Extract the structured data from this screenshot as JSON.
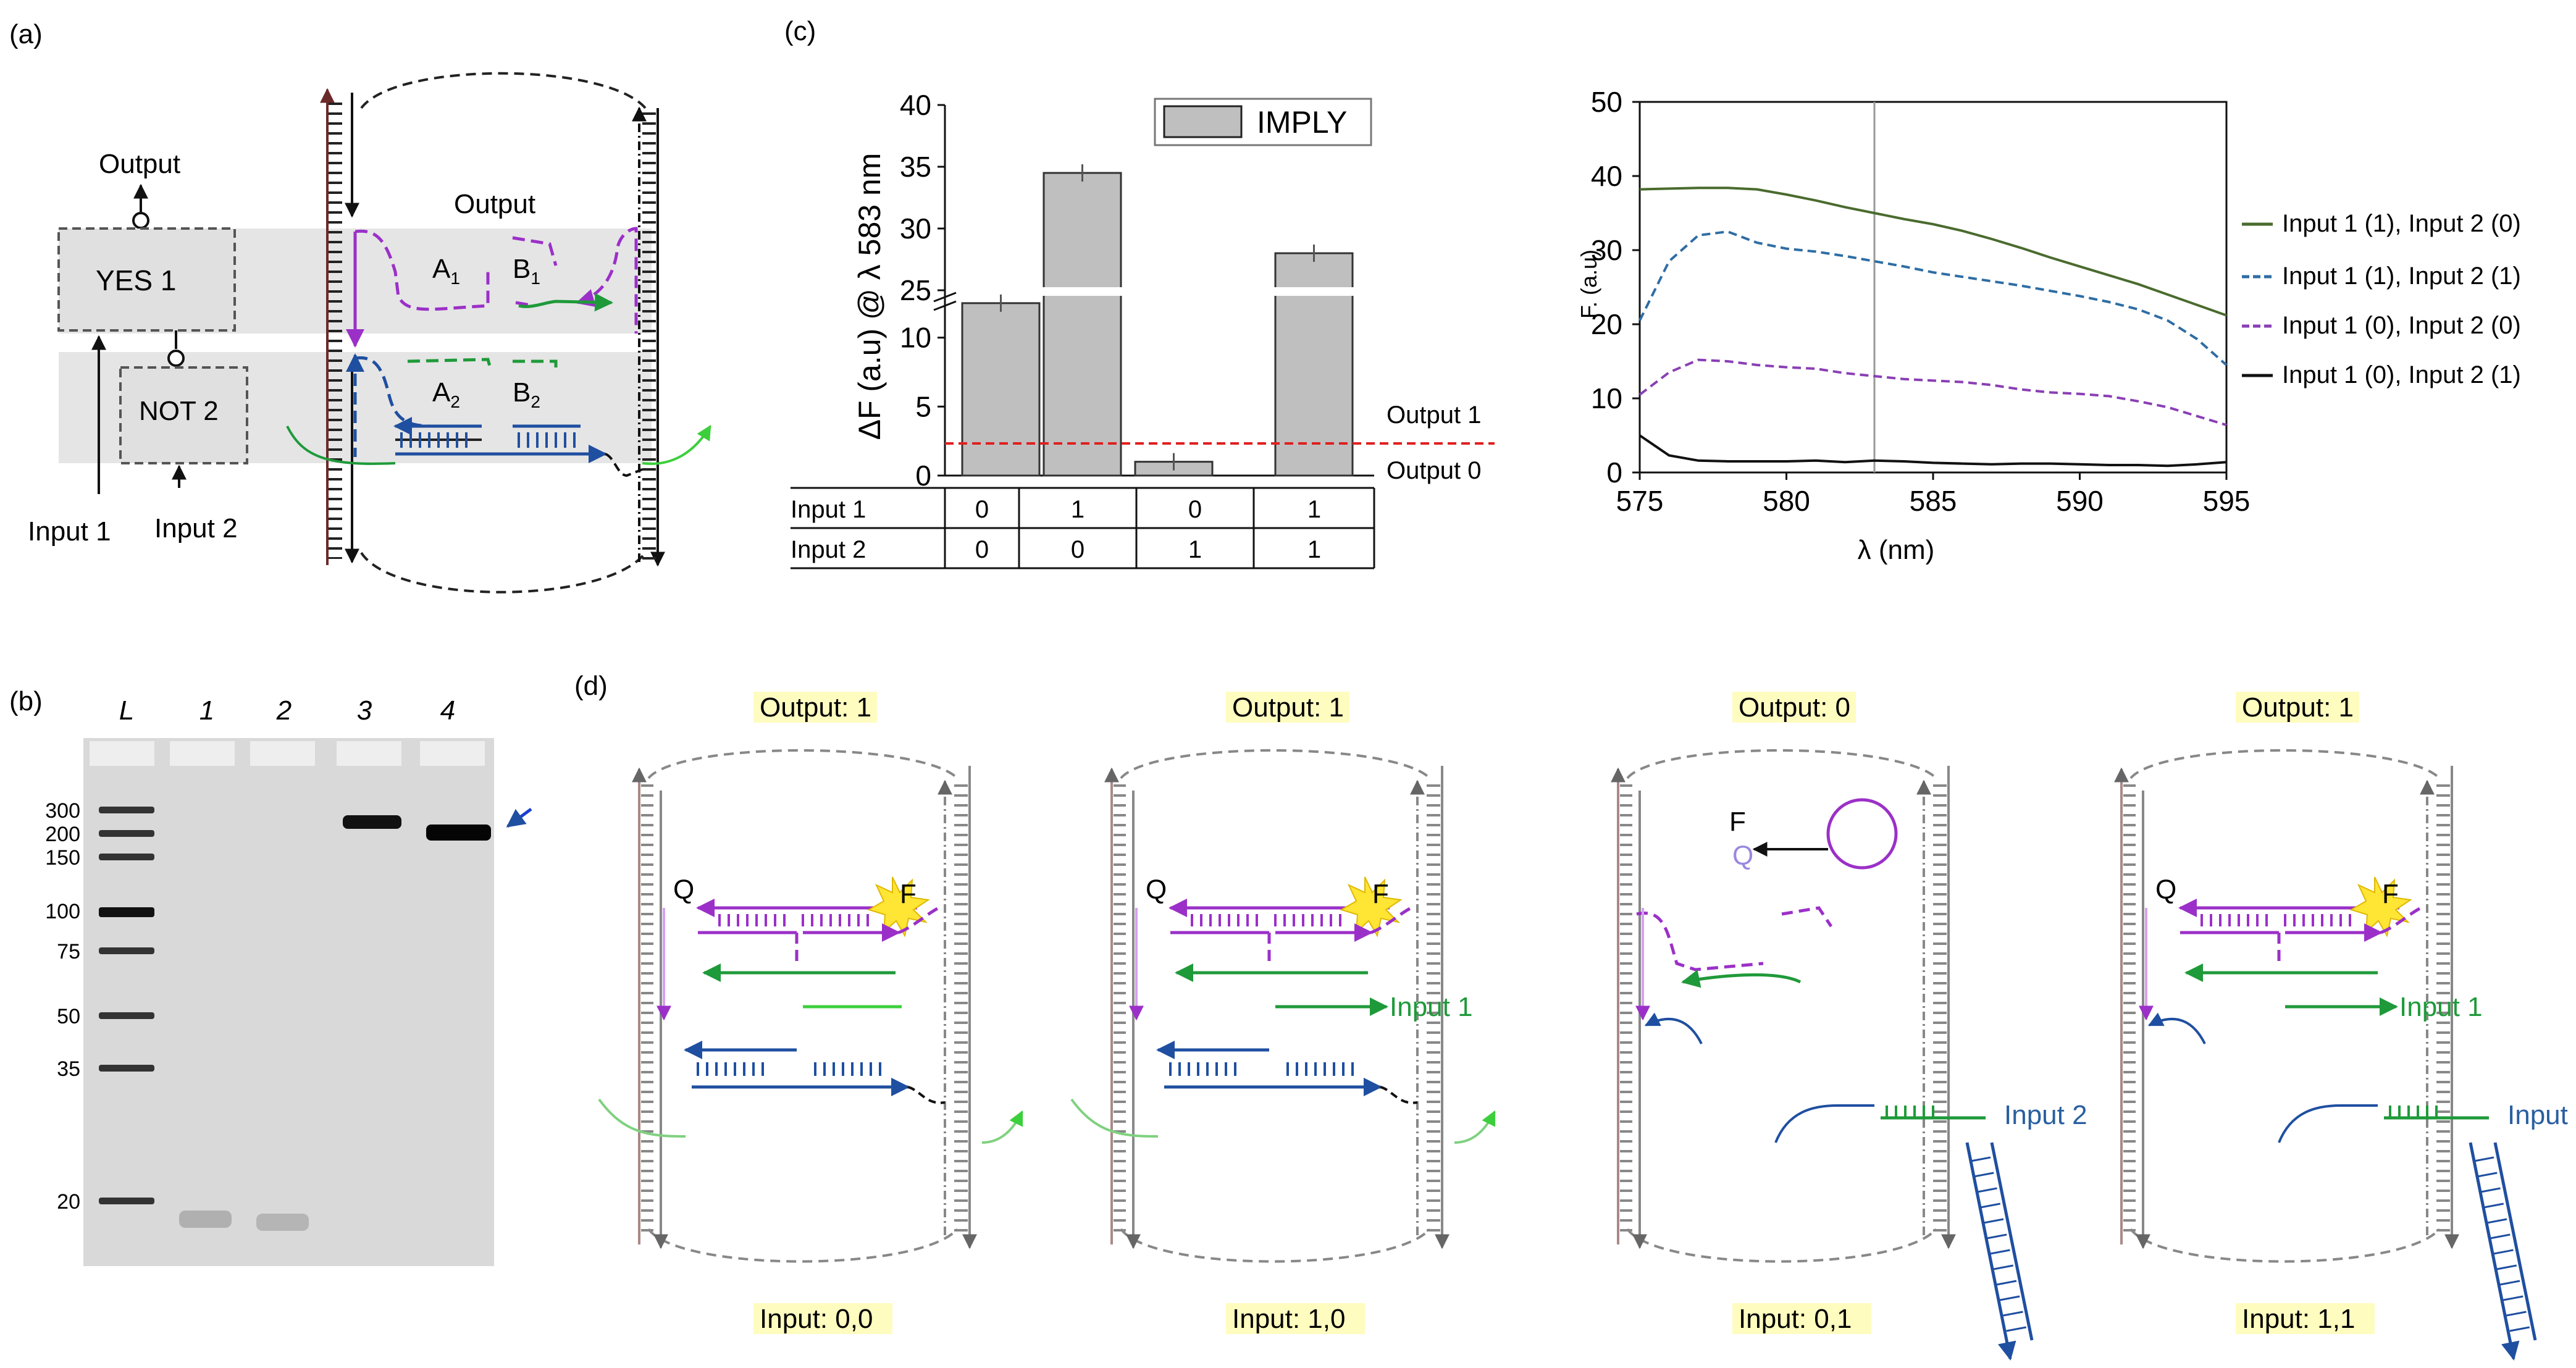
{
  "panel_a": {
    "label": "(a)",
    "output_top": "Output",
    "output_mid": "Output",
    "yes_gate": "YES 1",
    "not_gate": "NOT 2",
    "input1": "Input 1",
    "input2": "Input 2",
    "domain_A": "A",
    "domain_B": "B",
    "sub1": "1",
    "sub2": "2"
  },
  "panel_b": {
    "label": "(b)",
    "lanes": [
      "L",
      "1",
      "2",
      "3",
      "4"
    ],
    "ladder": [
      "300",
      "200",
      "150",
      "100",
      "75",
      "50",
      "35",
      "20"
    ]
  },
  "panel_c": {
    "label": "(c)",
    "bar_chart": {
      "type": "bar",
      "ylabel": "ΔF (a.u) @ λ 583 nm",
      "legend": "IMPLY",
      "yticks_low": [
        "0",
        "5",
        "10"
      ],
      "yticks_high": [
        "25",
        "30",
        "35",
        "40"
      ],
      "values": [
        12.5,
        34.5,
        1.0,
        28.0
      ],
      "threshold_label_1": "Output 1",
      "threshold_label_0": "Output 0",
      "threshold": 2.5,
      "table": {
        "rows": [
          {
            "name": "Input 1",
            "cells": [
              "0",
              "1",
              "0",
              "1"
            ]
          },
          {
            "name": "Input 2",
            "cells": [
              "0",
              "0",
              "1",
              "1"
            ]
          }
        ]
      }
    },
    "line_chart": {
      "type": "line",
      "xlabel": "λ (nm)",
      "ylabel": "F. (a.u)",
      "xticks": [
        "575",
        "580",
        "585",
        "590",
        "595"
      ],
      "yticks": [
        "0",
        "10",
        "20",
        "30",
        "40",
        "50"
      ],
      "series": [
        {
          "name": "Input 1 (1), Input 2 (0)",
          "color": "#4a6b2e"
        },
        {
          "name": "Input 1 (1), Input 2 (1)",
          "color": "#2e6da4"
        },
        {
          "name": "Input 1 (0), Input 2 (0)",
          "color": "#8a3fb5"
        },
        {
          "name": "Input 1 (0), Input 2 (1)",
          "color": "#111111"
        }
      ]
    }
  },
  "chart_data": [
    {
      "type": "bar",
      "title": "",
      "xlabel": "",
      "ylabel": "ΔF (a.u) @ λ 583 nm",
      "categories": [
        "0,0",
        "1,0",
        "0,1",
        "1,1"
      ],
      "values": [
        12.5,
        34.5,
        1.0,
        28.0
      ],
      "errors": [
        0.8,
        0.6,
        0.6,
        0.8
      ],
      "ylim": [
        0,
        40
      ],
      "threshold": 2.5
    },
    {
      "type": "line",
      "xlabel": "λ (nm)",
      "ylabel": "F. (a.u)",
      "xlim": [
        575,
        595
      ],
      "ylim": [
        0,
        50
      ],
      "series": [
        {
          "name": "Input 1 (1), Input 2 (0)",
          "x": [
            575,
            576,
            577,
            578,
            579,
            580,
            581,
            582,
            583,
            584,
            585,
            586,
            587,
            588,
            589,
            590,
            591,
            592,
            593,
            594,
            595
          ],
          "y": [
            38.2,
            38.3,
            38.4,
            38.4,
            38.2,
            37.5,
            36.7,
            35.8,
            35.0,
            34.2,
            33.5,
            32.6,
            31.5,
            30.3,
            29.0,
            27.8,
            26.6,
            25.4,
            24.0,
            22.6,
            21.2
          ]
        },
        {
          "name": "Input 1 (1), Input 2 (1)",
          "x": [
            575,
            576,
            577,
            578,
            579,
            580,
            581,
            582,
            583,
            584,
            585,
            586,
            587,
            588,
            589,
            590,
            591,
            592,
            593,
            594,
            595
          ],
          "y": [
            20.5,
            28.5,
            32.0,
            32.5,
            31.0,
            30.2,
            29.8,
            29.2,
            28.5,
            27.8,
            27.0,
            26.4,
            25.8,
            25.2,
            24.5,
            23.8,
            23.0,
            22.0,
            20.5,
            18.0,
            14.5
          ]
        },
        {
          "name": "Input 1 (0), Input 2 (0)",
          "x": [
            575,
            576,
            577,
            578,
            579,
            580,
            581,
            582,
            583,
            584,
            585,
            586,
            587,
            588,
            589,
            590,
            591,
            592,
            593,
            594,
            595
          ],
          "y": [
            10.5,
            13.5,
            15.2,
            15.0,
            14.5,
            14.2,
            14.0,
            13.4,
            13.0,
            12.6,
            12.4,
            12.2,
            11.8,
            11.2,
            10.8,
            10.6,
            10.3,
            9.6,
            8.8,
            7.6,
            6.4
          ]
        },
        {
          "name": "Input 1 (0), Input 2 (1)",
          "x": [
            575,
            576,
            577,
            578,
            579,
            580,
            581,
            582,
            583,
            584,
            585,
            586,
            587,
            588,
            589,
            590,
            591,
            592,
            593,
            594,
            595
          ],
          "y": [
            5.0,
            2.3,
            1.6,
            1.5,
            1.5,
            1.5,
            1.6,
            1.4,
            1.6,
            1.5,
            1.3,
            1.2,
            1.1,
            1.2,
            1.2,
            1.1,
            1.0,
            1.0,
            0.9,
            1.1,
            1.4
          ]
        }
      ],
      "marker_x": 583
    }
  ],
  "panel_d": {
    "label": "(d)",
    "outputs": [
      "Output: 1",
      "Output: 1",
      "Output: 0",
      "Output: 1"
    ],
    "inputs": [
      "Input: 0,0",
      "Input: 1,0",
      "Input: 0,1",
      "Input: 1,1"
    ],
    "quencher": "Q",
    "fluor": "F",
    "input1": "Input 1",
    "input2": "Input 2"
  }
}
